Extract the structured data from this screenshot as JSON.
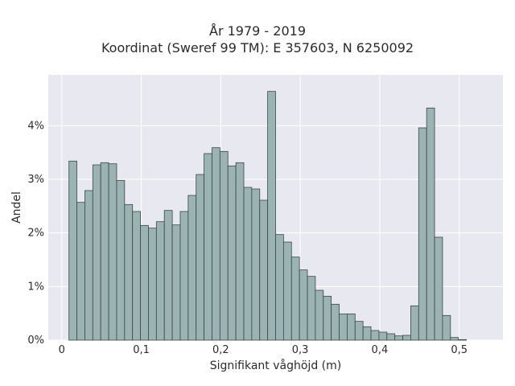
{
  "chart_data": {
    "type": "bar",
    "title": "År 1979 - 2019",
    "subtitle": "Koordinat (Sweref 99 TM): E 357603, N 6250092",
    "xlabel": "Signifikant våghöjd (m)",
    "ylabel": "Andel",
    "x_ticks": [
      {
        "value": 0.0,
        "label": "0"
      },
      {
        "value": 0.1,
        "label": "0,1"
      },
      {
        "value": 0.2,
        "label": "0,2"
      },
      {
        "value": 0.3,
        "label": "0,3"
      },
      {
        "value": 0.4,
        "label": "0,4"
      },
      {
        "value": 0.5,
        "label": "0,5"
      }
    ],
    "y_ticks": [
      {
        "value": 0,
        "label": "0%"
      },
      {
        "value": 1,
        "label": "1%"
      },
      {
        "value": 2,
        "label": "2%"
      },
      {
        "value": 3,
        "label": "3%"
      },
      {
        "value": 4,
        "label": "4%"
      }
    ],
    "xlim": [
      -0.017,
      0.555
    ],
    "ylim": [
      0,
      4.95
    ],
    "bin_start": 0.009,
    "bin_width": 0.01,
    "values": [
      3.34,
      2.57,
      2.79,
      3.27,
      3.31,
      3.29,
      2.98,
      2.53,
      2.4,
      2.14,
      2.09,
      2.21,
      2.42,
      2.15,
      2.4,
      2.7,
      3.09,
      3.48,
      3.59,
      3.52,
      3.25,
      3.31,
      2.85,
      2.82,
      2.61,
      4.64,
      1.97,
      1.83,
      1.55,
      1.31,
      1.19,
      0.93,
      0.82,
      0.67,
      0.49,
      0.49,
      0.35,
      0.25,
      0.18,
      0.15,
      0.12,
      0.08,
      0.09,
      0.64,
      3.96,
      4.33,
      1.92,
      0.46,
      0.05,
      0.01
    ],
    "grid": true,
    "colors": {
      "bar_fill": "#9bb3b2",
      "bar_stroke": "#3a4747",
      "plot_bg": "#e8e8f0",
      "grid": "#ffffff"
    }
  }
}
